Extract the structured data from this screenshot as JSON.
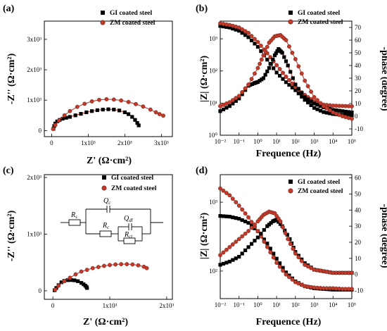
{
  "panels": {
    "a": {
      "label": "(a)",
      "xlabel": "Z' (Ω·cm²)",
      "ylabel": "-Z'' (Ω·cm²)"
    },
    "b": {
      "label": "(b)",
      "xlabel": "Frequence (Hz)",
      "ylabel_left": "|Z| (Ω·cm²)",
      "ylabel_right": "-phase (degree)"
    },
    "c": {
      "label": "(c)",
      "xlabel": "Z' (Ω·cm²)",
      "ylabel": "-Z'' (Ω·cm²)"
    },
    "d": {
      "label": "(d)",
      "xlabel": "Frequence (Hz)",
      "ylabel_left": "|Z| (Ω·cm²)",
      "ylabel_right": "-phase (degree)"
    }
  },
  "legend": {
    "gi": "GI coated steel",
    "zm": "ZM coated steel"
  },
  "circuit": {
    "rs": "R",
    "rs_sub": "s",
    "qc": "Q",
    "qc_sub": "c",
    "rc": "R",
    "rc_sub": "c",
    "qdl": "Q",
    "qdl_sub": "dl",
    "rct": "R",
    "rct_sub": "ct"
  },
  "colors": {
    "gi": "#000000",
    "zm": "#c0392b",
    "fit": "#c0392b"
  },
  "chart_data": [
    {
      "panel": "a",
      "type": "scatter",
      "xlim": [
        -200,
        3300
      ],
      "ylim": [
        -200,
        3600
      ],
      "xticks": [
        {
          "v": 0,
          "label": "0"
        },
        {
          "v": 1000,
          "label": "1x10³"
        },
        {
          "v": 2000,
          "label": "2x10³"
        },
        {
          "v": 3000,
          "label": "3x10³"
        }
      ],
      "yticks": [
        {
          "v": 0,
          "label": "0"
        },
        {
          "v": 1000,
          "label": "1x10³"
        },
        {
          "v": 2000,
          "label": "2x10³"
        },
        {
          "v": 3000,
          "label": "3x10³"
        }
      ],
      "series": [
        {
          "name": "GI coated steel",
          "marker": "square",
          "x": [
            50,
            70,
            100,
            150,
            220,
            300,
            400,
            500,
            650,
            800,
            950,
            1100,
            1250,
            1400,
            1550,
            1700,
            1850,
            2000,
            2100,
            2200,
            2280,
            2340,
            2380
          ],
          "y": [
            60,
            150,
            230,
            300,
            350,
            390,
            420,
            450,
            500,
            550,
            600,
            640,
            670,
            690,
            700,
            690,
            660,
            600,
            540,
            450,
            350,
            250,
            170
          ]
        },
        {
          "name": "ZM coated steel",
          "marker": "circle",
          "x": [
            40,
            100,
            200,
            350,
            500,
            700,
            900,
            1100,
            1300,
            1500,
            1700,
            1900,
            2100,
            2300,
            2500,
            2700,
            2850,
            2950,
            3050
          ],
          "y": [
            50,
            180,
            330,
            500,
            640,
            780,
            880,
            960,
            1010,
            1030,
            1020,
            990,
            940,
            870,
            790,
            690,
            600,
            540,
            490
          ]
        }
      ]
    },
    {
      "panel": "b",
      "type": "line",
      "xscale": "log",
      "yscale_left": "log",
      "xlim": [
        -2,
        5
      ],
      "ylim_left": [
        0,
        3.55
      ],
      "ylim_right": [
        -15,
        75
      ],
      "xticks": [
        {
          "v": -2,
          "label": "10⁻²"
        },
        {
          "v": -1,
          "label": "10⁻¹"
        },
        {
          "v": 0,
          "label": "10⁰"
        },
        {
          "v": 1,
          "label": "10¹"
        },
        {
          "v": 2,
          "label": "10²"
        },
        {
          "v": 3,
          "label": "10³"
        },
        {
          "v": 4,
          "label": "10⁴"
        },
        {
          "v": 5,
          "label": "10⁵"
        }
      ],
      "yticks_left": [
        {
          "v": 0,
          "label": "10⁰"
        },
        {
          "v": 1,
          "label": "10¹"
        },
        {
          "v": 2,
          "label": "10²"
        },
        {
          "v": 3,
          "label": "10³"
        }
      ],
      "yticks_right": [
        {
          "v": -10,
          "label": "-10"
        },
        {
          "v": 0,
          "label": "0"
        },
        {
          "v": 10,
          "label": "10"
        },
        {
          "v": 20,
          "label": "20"
        },
        {
          "v": 30,
          "label": "30"
        },
        {
          "v": 40,
          "label": "40"
        },
        {
          "v": 50,
          "label": "50"
        },
        {
          "v": 60,
          "label": "60"
        },
        {
          "v": 70,
          "label": "70"
        }
      ],
      "series": [
        {
          "name": "GI coated steel",
          "marker": "square",
          "kind": "modulus",
          "x": [
            -2,
            -1.5,
            -1,
            -0.5,
            0,
            0.5,
            1,
            1.5,
            2,
            2.5,
            3,
            3.5,
            4,
            4.5,
            5
          ],
          "y": [
            3.4,
            3.35,
            3.25,
            3.05,
            2.75,
            2.35,
            1.95,
            1.65,
            1.4,
            1.1,
            0.85,
            0.72,
            0.66,
            0.63,
            0.62
          ]
        },
        {
          "name": "ZM coated steel",
          "marker": "circle",
          "kind": "modulus",
          "x": [
            -2,
            -1.5,
            -1,
            -0.5,
            0,
            0.5,
            1,
            1.5,
            2,
            2.5,
            3,
            3.5,
            4,
            4.5,
            5
          ],
          "y": [
            3.48,
            3.43,
            3.35,
            3.18,
            2.9,
            2.55,
            2.18,
            1.82,
            1.5,
            1.25,
            1.05,
            0.95,
            0.92,
            0.91,
            0.9
          ]
        },
        {
          "name": "GI coated steel",
          "marker": "square",
          "kind": "phase",
          "x": [
            -2,
            -1.5,
            -1,
            -0.5,
            -0.2,
            0,
            0.3,
            0.6,
            0.9,
            1.1,
            1.3,
            1.6,
            2,
            2.5,
            3,
            3.5,
            4,
            4.5,
            5
          ],
          "y": [
            4,
            8,
            14,
            24,
            26,
            27,
            30,
            38,
            48,
            53,
            50,
            40,
            25,
            15,
            10,
            7,
            5,
            4,
            3
          ]
        },
        {
          "name": "ZM coated steel",
          "marker": "circle",
          "kind": "phase",
          "x": [
            -2,
            -1.5,
            -1,
            -0.5,
            0,
            0.3,
            0.6,
            0.9,
            1.2,
            1.5,
            2,
            2.5,
            3,
            3.5,
            4,
            4.5,
            5
          ],
          "y": [
            8,
            11,
            16,
            25,
            38,
            48,
            58,
            63,
            64,
            60,
            45,
            28,
            15,
            8,
            3,
            0,
            -2
          ]
        }
      ]
    },
    {
      "panel": "c",
      "type": "scatter",
      "xlim": [
        -150,
        2100
      ],
      "ylim": [
        -150,
        2050
      ],
      "xticks": [
        {
          "v": 0,
          "label": "0"
        },
        {
          "v": 1000,
          "label": "1x10³"
        },
        {
          "v": 2000,
          "label": "2x10³"
        }
      ],
      "yticks": [
        {
          "v": 0,
          "label": "0"
        },
        {
          "v": 1000,
          "label": "1x10³"
        },
        {
          "v": 2000,
          "label": "2x10³"
        }
      ],
      "series": [
        {
          "name": "GI coated steel",
          "marker": "square",
          "x": [
            30,
            60,
            100,
            150,
            200,
            260,
            320,
            380,
            440,
            500,
            540,
            570,
            590,
            600
          ],
          "y": [
            10,
            50,
            100,
            150,
            175,
            188,
            190,
            185,
            170,
            140,
            115,
            90,
            70,
            50
          ]
        },
        {
          "name": "ZM coated steel",
          "marker": "circle",
          "x": [
            40,
            100,
            200,
            300,
            400,
            500,
            600,
            700,
            800,
            900,
            1000,
            1100,
            1200,
            1300,
            1400,
            1500,
            1600,
            1650
          ],
          "y": [
            20,
            90,
            170,
            230,
            290,
            340,
            370,
            400,
            420,
            440,
            455,
            465,
            470,
            470,
            465,
            450,
            425,
            400
          ]
        }
      ]
    },
    {
      "panel": "d",
      "type": "line",
      "xscale": "log",
      "yscale_left": "log",
      "xlim": [
        -2,
        5
      ],
      "ylim_left": [
        1.6,
        3.4
      ],
      "ylim_right": [
        -15,
        62
      ],
      "xticks": [
        {
          "v": -2,
          "label": "10⁻²"
        },
        {
          "v": -1,
          "label": "10⁻¹"
        },
        {
          "v": 0,
          "label": "10⁰"
        },
        {
          "v": 1,
          "label": "10¹"
        },
        {
          "v": 2,
          "label": "10²"
        },
        {
          "v": 3,
          "label": "10³"
        },
        {
          "v": 4,
          "label": "10⁴"
        },
        {
          "v": 5,
          "label": "10⁵"
        }
      ],
      "yticks_left": [
        {
          "v": 2,
          "label": "10²"
        },
        {
          "v": 3,
          "label": "10³"
        }
      ],
      "yticks_right": [
        {
          "v": -10,
          "label": "-10"
        },
        {
          "v": 0,
          "label": "0"
        },
        {
          "v": 10,
          "label": "10"
        },
        {
          "v": 20,
          "label": "20"
        },
        {
          "v": 30,
          "label": "30"
        },
        {
          "v": 40,
          "label": "40"
        },
        {
          "v": 50,
          "label": "50"
        },
        {
          "v": 60,
          "label": "60"
        }
      ],
      "series": [
        {
          "name": "GI coated steel",
          "marker": "square",
          "kind": "modulus",
          "x": [
            -2,
            -1.5,
            -1,
            -0.5,
            0,
            0.5,
            1,
            1.5,
            2,
            2.5,
            3,
            3.5,
            4,
            4.5,
            5
          ],
          "y": [
            2.8,
            2.79,
            2.76,
            2.7,
            2.58,
            2.4,
            2.18,
            1.98,
            1.85,
            1.78,
            1.75,
            1.74,
            1.73,
            1.73,
            1.73
          ]
        },
        {
          "name": "ZM coated steel",
          "marker": "circle",
          "kind": "modulus",
          "x": [
            -2,
            -1.5,
            -1,
            -0.5,
            0,
            0.5,
            1,
            1.5,
            2,
            2.5,
            3,
            3.5,
            4,
            4.5,
            5
          ],
          "y": [
            3.2,
            3.1,
            2.95,
            2.78,
            2.58,
            2.35,
            2.12,
            1.95,
            1.84,
            1.78,
            1.76,
            1.75,
            1.75,
            1.74,
            1.74
          ]
        },
        {
          "name": "GI coated steel",
          "marker": "square",
          "kind": "phase",
          "x": [
            -2,
            -1.5,
            -1,
            -0.5,
            0,
            0.5,
            0.8,
            1,
            1.3,
            1.7,
            2,
            2.5,
            3,
            3.5,
            4,
            4.5,
            5
          ],
          "y": [
            6,
            8,
            11,
            17,
            23,
            30,
            33,
            34,
            30,
            22,
            14,
            7,
            3,
            2,
            1,
            1,
            1
          ]
        },
        {
          "name": "ZM coated steel",
          "marker": "circle",
          "kind": "phase",
          "x": [
            -2,
            -1.5,
            -1,
            -0.5,
            0,
            0.3,
            0.6,
            0.9,
            1.2,
            1.6,
            2,
            2.5,
            3,
            3.5,
            4,
            4.5,
            5
          ],
          "y": [
            12,
            17,
            22,
            27,
            33,
            37,
            39,
            38,
            33,
            22,
            13,
            6,
            3,
            2,
            1,
            1,
            1
          ]
        }
      ]
    }
  ]
}
